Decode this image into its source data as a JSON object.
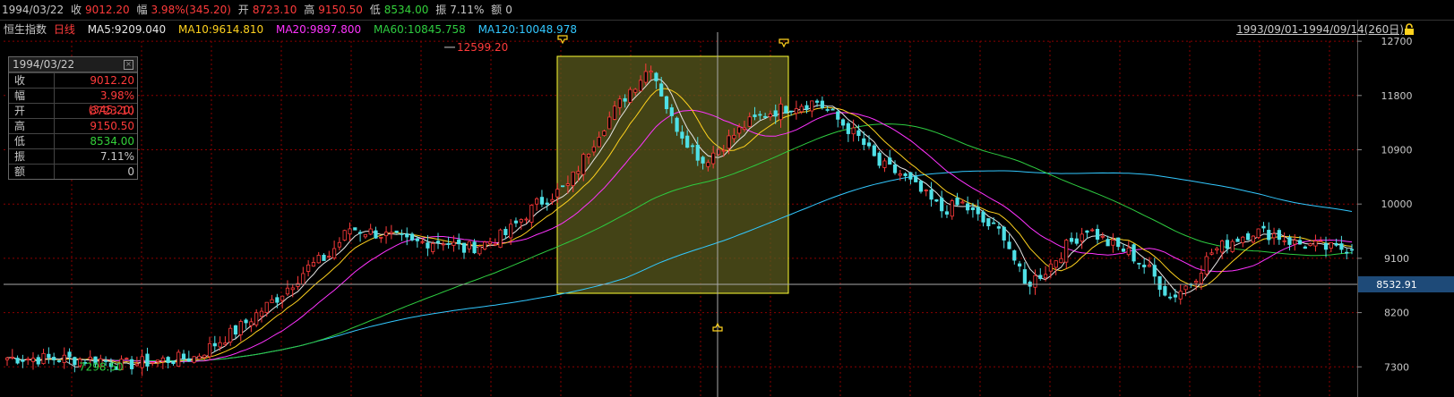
{
  "top_bar": {
    "date": "1994/03/22",
    "close_label": "收",
    "close_value": "9012.20",
    "change_label": "幅",
    "change_value": "3.98%(345.20)",
    "open_label": "开",
    "open_value": "8723.10",
    "high_label": "高",
    "high_value": "9150.50",
    "low_label": "低",
    "low_value": "8534.00",
    "amplitude_label": "振",
    "amplitude_value": "7.11%",
    "volume_label": "额",
    "volume_value": "0"
  },
  "ma_bar": {
    "index_name": "恒生指数",
    "period": "日线",
    "ma5": "MA5:9209.040",
    "ma10": "MA10:9614.810",
    "ma20": "MA20:9897.800",
    "ma60": "MA60:10845.758",
    "ma120": "MA120:10048.978"
  },
  "range_text": "1993/09/01-1994/09/14(260日)",
  "info_box": {
    "title": "1994/03/22",
    "rows": [
      {
        "k": "收",
        "v": "9012.20",
        "color": "#ff3b3b"
      },
      {
        "k": "幅",
        "v": "3.98%(345.20)",
        "color": "#ff3b3b"
      },
      {
        "k": "开",
        "v": "8723.10",
        "color": "#ff3b3b"
      },
      {
        "k": "高",
        "v": "9150.50",
        "color": "#ff3b3b"
      },
      {
        "k": "低",
        "v": "8534.00",
        "color": "#33d13a"
      },
      {
        "k": "振",
        "v": "7.11%",
        "color": "#c8c8c8"
      },
      {
        "k": "额",
        "v": "0",
        "color": "#c8c8c8"
      }
    ]
  },
  "colors": {
    "up": "#ff3b3b",
    "down": "#4fe0e6",
    "ma5": "#e6e6e6",
    "ma10": "#ffd21e",
    "ma20": "#ff33ff",
    "ma60": "#2ecc40",
    "ma120": "#32c8ff",
    "grid": "#8b0000",
    "selection_fill": "#5a5a1e",
    "selection_border": "#ffff33"
  },
  "chart_data": {
    "type": "candlestick",
    "title": "恒生指数",
    "y_ticks": [
      12700,
      11800,
      10900,
      10000,
      9100,
      8200,
      7300
    ],
    "ylim": [
      6800,
      12850
    ],
    "x_count": 260,
    "current_price_label": "8532.91",
    "annotations": [
      {
        "text": "12599.20",
        "value": 12599.2,
        "type": "high"
      },
      {
        "text": "7298.50",
        "value": 7298.5,
        "type": "low"
      }
    ],
    "trend_nodes": [
      [
        0,
        7450
      ],
      [
        18,
        7420
      ],
      [
        22,
        7330
      ],
      [
        30,
        7410
      ],
      [
        36,
        7460
      ],
      [
        44,
        7900
      ],
      [
        52,
        8450
      ],
      [
        58,
        8950
      ],
      [
        62,
        9150
      ],
      [
        66,
        9600
      ],
      [
        72,
        9500
      ],
      [
        78,
        9350
      ],
      [
        84,
        9400
      ],
      [
        88,
        9250
      ],
      [
        92,
        9350
      ],
      [
        96,
        9500
      ],
      [
        102,
        10000
      ],
      [
        108,
        10300
      ],
      [
        114,
        11200
      ],
      [
        120,
        11900
      ],
      [
        124,
        12300
      ],
      [
        128,
        11400
      ],
      [
        134,
        10700
      ],
      [
        138,
        11000
      ],
      [
        142,
        11300
      ],
      [
        146,
        11500
      ],
      [
        152,
        11650
      ],
      [
        156,
        11700
      ],
      [
        160,
        11400
      ],
      [
        164,
        11100
      ],
      [
        168,
        10650
      ],
      [
        172,
        10500
      ],
      [
        176,
        10200
      ],
      [
        180,
        9900
      ],
      [
        184,
        10000
      ],
      [
        188,
        9700
      ],
      [
        192,
        9500
      ],
      [
        196,
        8650
      ],
      [
        200,
        8900
      ],
      [
        204,
        9300
      ],
      [
        208,
        9600
      ],
      [
        212,
        9350
      ],
      [
        216,
        9200
      ],
      [
        220,
        8900
      ],
      [
        224,
        8450
      ],
      [
        228,
        8700
      ],
      [
        232,
        9200
      ],
      [
        236,
        9400
      ],
      [
        240,
        9550
      ],
      [
        244,
        9500
      ],
      [
        248,
        9350
      ],
      [
        252,
        9300
      ],
      [
        256,
        9250
      ],
      [
        259,
        9300
      ]
    ]
  }
}
